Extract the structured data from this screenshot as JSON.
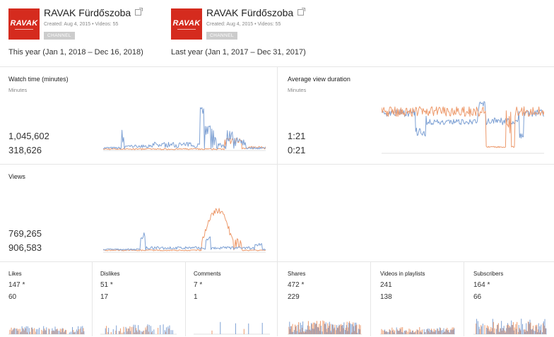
{
  "colors": {
    "this_year": "#7ea1d4",
    "last_year": "#ed9a6c",
    "brand": "#d52b1e"
  },
  "channels": [
    {
      "name": "RAVAK Fürdőszoba",
      "logo_text": "RAVAK",
      "meta": "Created: Aug 4, 2015  •  Videos: 55",
      "badge": "CHANNEL",
      "period": "This year (Jan 1, 2018 – Dec 16, 2018)",
      "icon": "external-link-icon"
    },
    {
      "name": "RAVAK Fürdőszoba",
      "logo_text": "RAVAK",
      "meta": "Created: Aug 4, 2015  •  Videos: 55",
      "badge": "CHANNEL",
      "period": "Last year (Jan 1, 2017 – Dec 31, 2017)",
      "icon": "external-link-icon"
    }
  ],
  "metrics": {
    "watch_time": {
      "title": "Watch time (minutes)",
      "unit": "Minutes",
      "this_year": "1,045,602",
      "last_year": "318,626"
    },
    "avg_view_duration": {
      "title": "Average view duration",
      "unit": "Minutes",
      "this_year": "1:21",
      "last_year": "0:21"
    },
    "views": {
      "title": "Views",
      "this_year": "769,265",
      "last_year": "906,583"
    }
  },
  "small_metrics": [
    {
      "title": "Likes",
      "this_year": "147 *",
      "last_year": "60"
    },
    {
      "title": "Dislikes",
      "this_year": "51 *",
      "last_year": "17"
    },
    {
      "title": "Comments",
      "this_year": "7 *",
      "last_year": "1"
    },
    {
      "title": "Shares",
      "this_year": "472 *",
      "last_year": "229"
    },
    {
      "title": "Videos in playlists",
      "this_year": "241",
      "last_year": "138"
    },
    {
      "title": "Subscribers",
      "this_year": "164 *",
      "last_year": "66"
    }
  ]
}
